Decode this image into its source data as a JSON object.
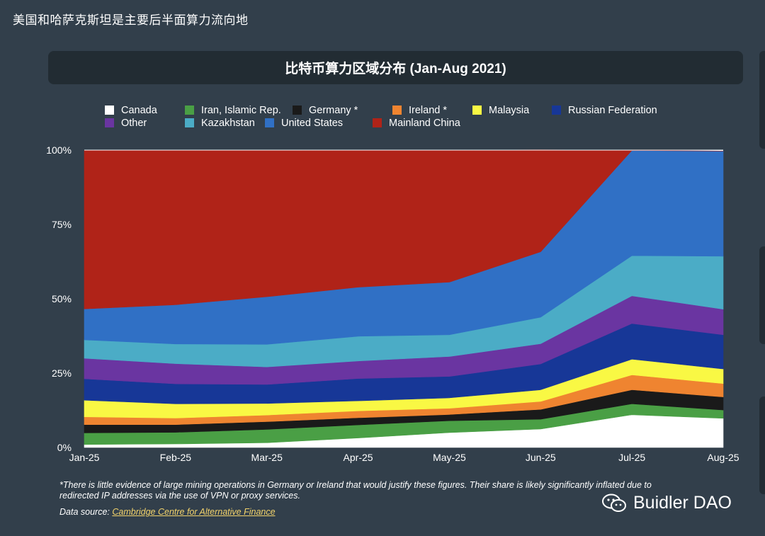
{
  "page": {
    "caption": "美国和哈萨克斯坦是主要后半面算力流向地"
  },
  "header": {
    "title": "比特币算力区域分布 (Jan-Aug 2021)"
  },
  "legend": {
    "items": [
      {
        "label": "Canada",
        "color": "#ffffff"
      },
      {
        "label": "Iran, Islamic Rep.",
        "color": "#4a9f45"
      },
      {
        "label": "Germany *",
        "color": "#1a1a1a"
      },
      {
        "label": "Ireland *",
        "color": "#ef8430"
      },
      {
        "label": "Malaysia",
        "color": "#f9f844"
      },
      {
        "label": "Russian Federation",
        "color": "#173797"
      },
      {
        "label": "Other",
        "color": "#6a35a1"
      },
      {
        "label": "Kazakhstan",
        "color": "#4bacc6"
      },
      {
        "label": "United States",
        "color": "#3070c5"
      },
      {
        "label": "Mainland China",
        "color": "#b02318"
      }
    ]
  },
  "chart_data": {
    "type": "area",
    "stacked": true,
    "title": "比特币算力区域分布 (Jan-Aug 2021)",
    "categories": [
      "Jan-25",
      "Feb-25",
      "Mar-25",
      "Apr-25",
      "May-25",
      "Jun-25",
      "Jul-25",
      "Aug-25"
    ],
    "y_ticks": [
      "0%",
      "25%",
      "50%",
      "75%",
      "100%"
    ],
    "ylim": [
      0,
      100
    ],
    "legend_position": "top",
    "series": [
      {
        "name": "Canada",
        "color": "#ffffff",
        "values": [
          1.0,
          1.2,
          1.6,
          3.2,
          5.0,
          6.2,
          11.0,
          9.8
        ]
      },
      {
        "name": "Iran, Islamic Rep.",
        "color": "#4a9f45",
        "values": [
          3.9,
          3.9,
          4.5,
          4.4,
          4.0,
          3.3,
          3.7,
          2.8
        ]
      },
      {
        "name": "Germany *",
        "color": "#1a1a1a",
        "values": [
          2.8,
          2.6,
          2.6,
          2.4,
          2.1,
          3.3,
          4.7,
          4.4
        ]
      },
      {
        "name": "Ireland *",
        "color": "#ef8430",
        "values": [
          2.6,
          2.2,
          2.2,
          2.3,
          2.1,
          2.7,
          5.0,
          4.5
        ]
      },
      {
        "name": "Malaysia",
        "color": "#f9f844",
        "values": [
          5.6,
          4.8,
          3.9,
          3.4,
          3.5,
          3.9,
          5.3,
          4.9
        ]
      },
      {
        "name": "Russian Federation",
        "color": "#173797",
        "values": [
          7.2,
          6.7,
          6.4,
          7.5,
          7.2,
          8.7,
          12.0,
          11.5
        ]
      },
      {
        "name": "Other",
        "color": "#6a35a1",
        "values": [
          6.9,
          6.8,
          5.9,
          5.9,
          6.7,
          6.8,
          9.3,
          8.6
        ]
      },
      {
        "name": "Kazakhstan",
        "color": "#4bacc6",
        "values": [
          6.2,
          6.6,
          7.6,
          8.3,
          7.3,
          8.9,
          13.5,
          17.8
        ]
      },
      {
        "name": "United States",
        "color": "#3070c5",
        "values": [
          10.4,
          13.2,
          16.0,
          16.5,
          17.7,
          22.0,
          35.4,
          35.4
        ]
      },
      {
        "name": "Mainland China",
        "color": "#b02318",
        "values": [
          53.3,
          51.9,
          49.3,
          46.0,
          44.3,
          34.3,
          0.0,
          0.0
        ]
      }
    ]
  },
  "footnote": {
    "line1": "*There is little evidence of large mining operations in Germany or Ireland that would justify these figures. Their share is likely significantly inflated due to",
    "line2": "redirected IP addresses via the use of VPN or proxy services.",
    "source_label": "Data source:",
    "source_link": "Cambridge Centre for Alternative Finance"
  },
  "watermark": {
    "text": "Buidler DAO"
  }
}
